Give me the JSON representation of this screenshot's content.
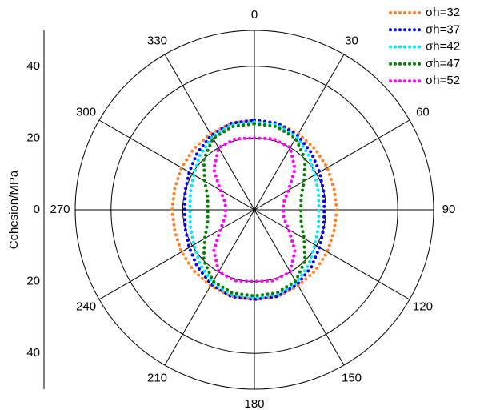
{
  "chart_data": {
    "type": "polar",
    "ylabel": "Cohesion/MPa",
    "rlim": [
      0,
      50
    ],
    "rticks": [
      20,
      40
    ],
    "ylim": [
      -50,
      50
    ],
    "yticks": [
      {
        "value": 40,
        "label": "40"
      },
      {
        "value": 20,
        "label": "20"
      },
      0,
      {
        "value": -20,
        "label": "20"
      },
      {
        "value": -40,
        "label": "40"
      }
    ],
    "thetaticks": [
      0,
      30,
      60,
      90,
      120,
      150,
      180,
      210,
      240,
      270,
      300,
      330
    ],
    "theta": [
      0,
      15,
      30,
      45,
      60,
      75,
      90,
      105,
      120,
      135,
      150,
      165,
      180,
      195,
      210,
      225,
      240,
      255,
      270,
      285,
      300,
      315,
      330,
      345
    ],
    "legend": "upper right",
    "series": [
      {
        "name": "σh=32",
        "color": "#ff7f27",
        "values": [
          25,
          25,
          24.5,
          24,
          23.5,
          23,
          23,
          23,
          23.5,
          24,
          24.5,
          25,
          25,
          25,
          24.5,
          24,
          23.5,
          23,
          23,
          23,
          23.5,
          24,
          24.5,
          25
        ]
      },
      {
        "name": "σh=37",
        "color": "#0000ff",
        "values": [
          25,
          25,
          24,
          22.5,
          21,
          20,
          19.5,
          20,
          21,
          22.5,
          24,
          25,
          25,
          25,
          24,
          22.5,
          21,
          20,
          19.5,
          20,
          21,
          22.5,
          24,
          25
        ]
      },
      {
        "name": "σh=42",
        "color": "#00e8ff",
        "values": [
          24.5,
          24.5,
          23.5,
          21.5,
          19.5,
          18.5,
          18,
          18.5,
          19.5,
          21.5,
          23.5,
          24.5,
          24.5,
          24.5,
          23.5,
          21.5,
          19.5,
          18.5,
          18,
          18.5,
          19.5,
          21.5,
          23.5,
          24.5
        ]
      },
      {
        "name": "σh=47",
        "color": "#008000",
        "values": [
          24,
          24,
          23,
          20,
          16,
          13.5,
          13,
          13.5,
          16,
          20,
          23,
          24,
          24,
          24,
          23,
          20,
          16,
          13.5,
          13,
          13.5,
          16,
          20,
          23,
          24
        ]
      },
      {
        "name": "σh=52",
        "color": "#ff00ff",
        "values": [
          20,
          20.5,
          20,
          16,
          11,
          8.5,
          8,
          8.5,
          11,
          16,
          20,
          20.5,
          20,
          20.5,
          20,
          16,
          11,
          8.5,
          8,
          8.5,
          11,
          16,
          20,
          20.5
        ]
      }
    ]
  }
}
